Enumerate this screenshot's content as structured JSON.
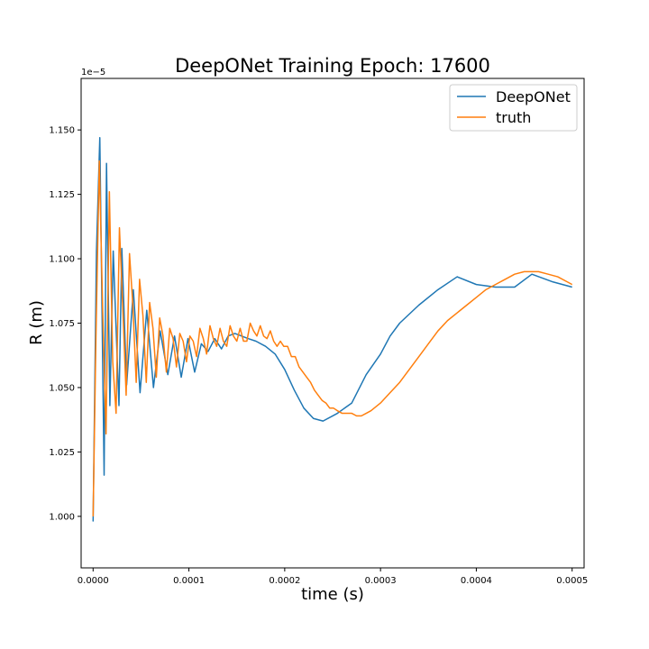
{
  "chart_data": {
    "type": "line",
    "title": "DeepONet Training Epoch: 17600",
    "xlabel": "time (s)",
    "ylabel": "R (m)",
    "y_offset_label": "1e−5",
    "xlim": [
      -1.25e-05,
      0.0005125
    ],
    "ylim": [
      0.98,
      1.17
    ],
    "x_ticks": [
      0,
      0.0001,
      0.0002,
      0.0003,
      0.0004,
      0.0005
    ],
    "x_tick_labels": [
      "0.0000",
      "0.0001",
      "0.0002",
      "0.0003",
      "0.0004",
      "0.0005"
    ],
    "y_ticks": [
      1.0,
      1.025,
      1.05,
      1.075,
      1.1,
      1.125,
      1.15
    ],
    "y_tick_labels": [
      "1.000",
      "1.025",
      "1.050",
      "1.075",
      "1.100",
      "1.125",
      "1.150"
    ],
    "grid": false,
    "legend_position": "top-right",
    "series": [
      {
        "name": "DeepONet",
        "color": "#1f77b4",
        "x": [
          0,
          3.5e-06,
          7e-06,
          1.15e-05,
          1.4e-05,
          1.75e-05,
          2.1e-05,
          2.7e-05,
          3e-05,
          3.5e-05,
          4.2e-05,
          4.9e-05,
          5.6e-05,
          6.3e-05,
          7e-05,
          7.8e-05,
          8.5e-05,
          9.2e-05,
          9.9e-05,
          0.000106,
          0.000113,
          0.00012,
          0.000127,
          0.000134,
          0.000141,
          0.000148,
          0.000155,
          0.000162,
          0.00017,
          0.00018,
          0.00019,
          0.0002,
          0.00021,
          0.00022,
          0.00023,
          0.00024,
          0.000255,
          0.00027,
          0.000285,
          0.0003,
          0.00031,
          0.00032,
          0.00034,
          0.00036,
          0.00038,
          0.0004,
          0.00042,
          0.00044,
          0.000458,
          0.00048,
          0.0005
        ],
        "y": [
          0.998,
          1.103,
          1.147,
          1.016,
          1.137,
          1.043,
          1.103,
          1.043,
          1.104,
          1.051,
          1.088,
          1.048,
          1.08,
          1.05,
          1.072,
          1.055,
          1.07,
          1.054,
          1.069,
          1.056,
          1.067,
          1.064,
          1.069,
          1.065,
          1.07,
          1.071,
          1.07,
          1.069,
          1.068,
          1.066,
          1.063,
          1.057,
          1.049,
          1.042,
          1.038,
          1.037,
          1.04,
          1.044,
          1.055,
          1.063,
          1.07,
          1.075,
          1.082,
          1.088,
          1.093,
          1.09,
          1.089,
          1.089,
          1.094,
          1.091,
          1.089
        ]
      },
      {
        "name": "truth",
        "color": "#ff7f0e",
        "x": [
          0,
          3e-06,
          6.5e-06,
          1e-05,
          1.35e-05,
          1.7e-05,
          2.05e-05,
          2.4e-05,
          2.75e-05,
          3.1e-05,
          3.45e-05,
          3.8e-05,
          4.15e-05,
          4.5e-05,
          4.85e-05,
          5.2e-05,
          5.55e-05,
          5.9e-05,
          6.25e-05,
          6.6e-05,
          6.95e-05,
          7.3e-05,
          7.65e-05,
          8e-05,
          8.35e-05,
          8.7e-05,
          9.05e-05,
          9.4e-05,
          9.75e-05,
          0.000101,
          0.0001045,
          0.000108,
          0.0001115,
          0.000115,
          0.0001185,
          0.000122,
          0.0001255,
          0.000129,
          0.0001325,
          0.000136,
          0.0001395,
          0.000143,
          0.0001465,
          0.00015,
          0.0001535,
          0.000157,
          0.0001605,
          0.000164,
          0.0001675,
          0.000171,
          0.0001745,
          0.000178,
          0.0001815,
          0.000185,
          0.0001885,
          0.000192,
          0.0001955,
          0.000199,
          0.000203,
          0.000207,
          0.000211,
          0.000215,
          0.000219,
          0.000223,
          0.000227,
          0.000231,
          0.000235,
          0.000239,
          0.000243,
          0.000247,
          0.000251,
          0.000255,
          0.00026,
          0.000265,
          0.00027,
          0.000275,
          0.00028,
          0.000285,
          0.00029,
          0.0003,
          0.00031,
          0.00032,
          0.00033,
          0.00034,
          0.00035,
          0.00036,
          0.00037,
          0.00038,
          0.00039,
          0.0004,
          0.00041,
          0.00042,
          0.00043,
          0.00044,
          0.00045,
          0.000458,
          0.000465,
          0.000475,
          0.000485,
          0.000495,
          0.0005
        ],
        "y": [
          1.0,
          1.07,
          1.138,
          1.08,
          1.032,
          1.126,
          1.06,
          1.04,
          1.112,
          1.081,
          1.047,
          1.102,
          1.082,
          1.052,
          1.092,
          1.078,
          1.052,
          1.083,
          1.073,
          1.054,
          1.077,
          1.07,
          1.056,
          1.073,
          1.069,
          1.058,
          1.071,
          1.068,
          1.06,
          1.07,
          1.068,
          1.062,
          1.073,
          1.069,
          1.063,
          1.074,
          1.069,
          1.066,
          1.073,
          1.068,
          1.066,
          1.074,
          1.07,
          1.068,
          1.073,
          1.068,
          1.068,
          1.075,
          1.072,
          1.07,
          1.074,
          1.07,
          1.069,
          1.072,
          1.068,
          1.066,
          1.068,
          1.066,
          1.066,
          1.062,
          1.062,
          1.058,
          1.056,
          1.054,
          1.052,
          1.049,
          1.047,
          1.045,
          1.044,
          1.042,
          1.042,
          1.041,
          1.04,
          1.04,
          1.04,
          1.039,
          1.039,
          1.04,
          1.041,
          1.044,
          1.048,
          1.052,
          1.057,
          1.062,
          1.067,
          1.072,
          1.076,
          1.079,
          1.082,
          1.085,
          1.088,
          1.09,
          1.092,
          1.094,
          1.095,
          1.095,
          1.095,
          1.094,
          1.093,
          1.091,
          1.09
        ]
      }
    ]
  }
}
